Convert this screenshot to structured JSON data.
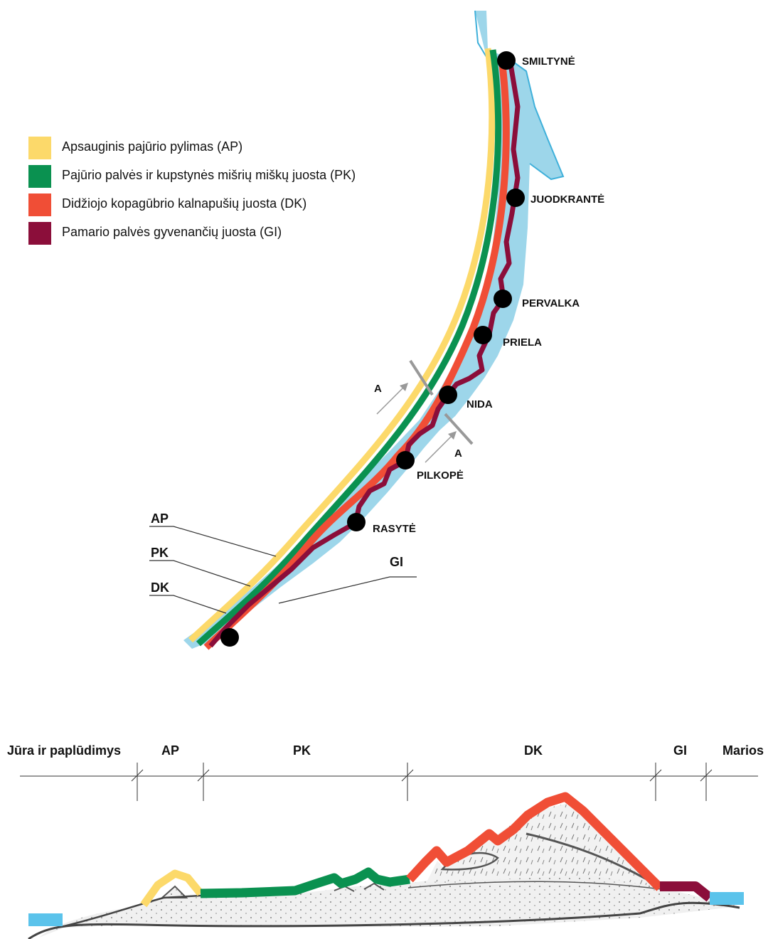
{
  "legend": [
    {
      "label": "Apsauginis pajūrio pylimas (AP)",
      "color": "#fcd96a"
    },
    {
      "label": "Pajūrio palvės ir kupstynės mišrių miškų juosta (PK)",
      "color": "#0a9150"
    },
    {
      "label": "Didžiojo kopagūbrio kalnapušių juosta (DK)",
      "color": "#f04e36"
    },
    {
      "label": "Pamario palvės gyvenančių juosta (GI)",
      "color": "#8b0e3a"
    }
  ],
  "settlements": [
    "SMILTYNĖ",
    "JUODKRANTĖ",
    "PERVALKA",
    "PRIELA",
    "NIDA",
    "PILKOPĖ",
    "RASYTĖ"
  ],
  "section_marker": "A",
  "callouts": {
    "ap": "AP",
    "pk": "PK",
    "dk": "DK",
    "gi": "GI"
  },
  "profile_zones": [
    "Jūra ir paplūdimys",
    "AP",
    "PK",
    "DK",
    "GI",
    "Marios"
  ],
  "colors": {
    "water": "#9dd6ea",
    "water_edge": "#3fb0da",
    "profile_water": "#5bc3eb",
    "ground": "#efefef",
    "outline": "#444444"
  }
}
